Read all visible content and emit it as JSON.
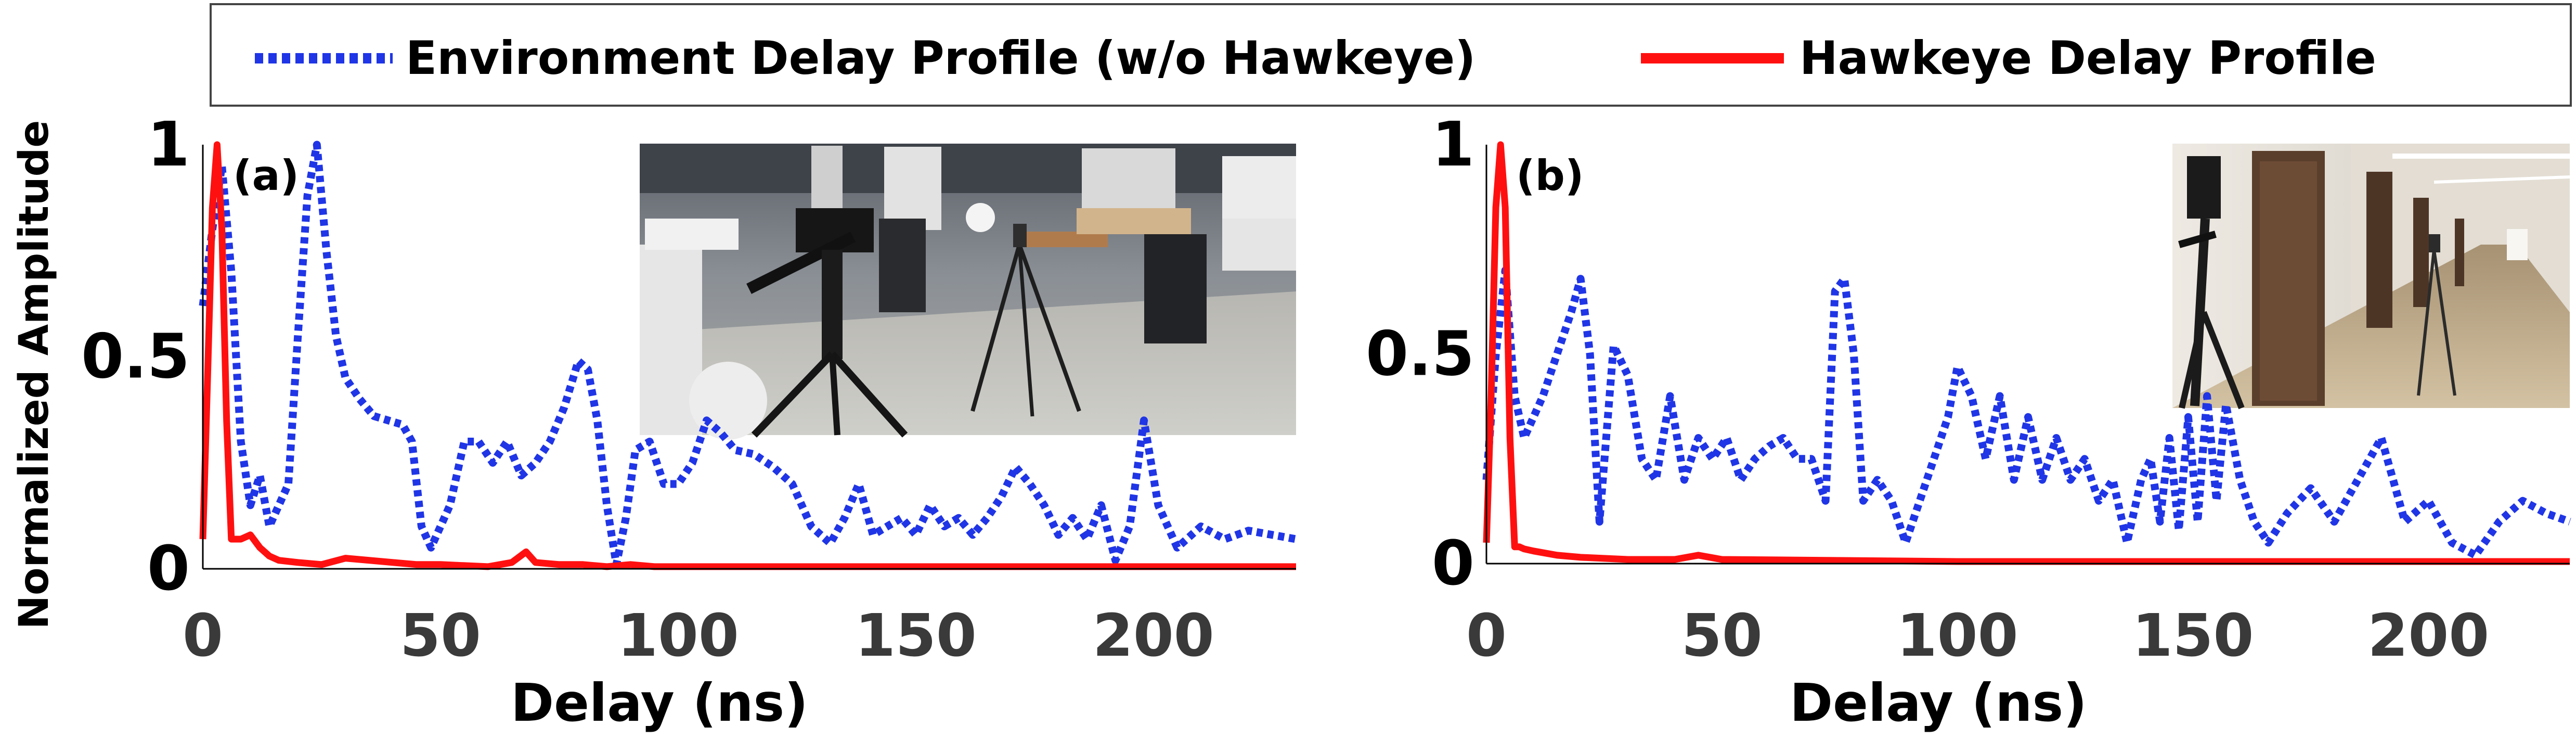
{
  "legend": {
    "environment_label": "Environment Delay Profile (w/o Hawkeye)",
    "hawkeye_label": "Hawkeye Delay Profile"
  },
  "shared_ylabel": "Normalized Amplitude",
  "colors": {
    "environment": "#1f35e6",
    "hawkeye": "#ff1010",
    "axis": "#000000",
    "tick_text": "#3a3a3a"
  },
  "chart_data": [
    {
      "type": "line",
      "panel_label": "(a)",
      "xlabel": "Delay (ns)",
      "ylabel": "Normalized Amplitude",
      "xlim": [
        0,
        230
      ],
      "ylim": [
        0,
        1
      ],
      "xticks": [
        0,
        50,
        100,
        150,
        200
      ],
      "yticks": [
        0,
        0.5,
        1
      ],
      "ytick_labels": [
        "0",
        "0.5",
        "1"
      ],
      "legend_position": "top",
      "grid": false,
      "inset_photo": "indoor-lab-with-tripod-photo",
      "series": [
        {
          "name": "Environment Delay Profile (w/o Hawkeye)",
          "style": "dotted",
          "x": [
            0,
            2,
            4,
            6,
            8,
            10,
            12,
            14,
            16,
            18,
            20,
            22,
            24,
            26,
            28,
            30,
            33,
            36,
            39,
            42,
            44,
            46,
            48,
            50,
            52,
            55,
            58,
            61,
            64,
            67,
            70,
            73,
            76,
            79,
            81,
            83,
            85,
            87,
            89,
            91,
            94,
            97,
            100,
            103,
            106,
            109,
            112,
            116,
            120,
            124,
            128,
            132,
            135,
            138,
            141,
            144,
            147,
            150,
            153,
            156,
            159,
            162,
            165,
            168,
            171,
            174,
            177,
            180,
            183,
            186,
            189,
            192,
            195,
            198,
            201,
            205,
            210,
            215,
            220,
            225,
            230
          ],
          "y": [
            0.62,
            0.8,
            0.95,
            0.7,
            0.3,
            0.15,
            0.22,
            0.1,
            0.15,
            0.2,
            0.55,
            0.88,
            1.0,
            0.75,
            0.55,
            0.45,
            0.4,
            0.36,
            0.35,
            0.34,
            0.3,
            0.1,
            0.05,
            0.1,
            0.15,
            0.3,
            0.3,
            0.25,
            0.3,
            0.22,
            0.25,
            0.3,
            0.38,
            0.49,
            0.47,
            0.35,
            0.15,
            0.01,
            0.12,
            0.28,
            0.3,
            0.2,
            0.2,
            0.25,
            0.35,
            0.32,
            0.28,
            0.27,
            0.24,
            0.2,
            0.1,
            0.06,
            0.12,
            0.2,
            0.08,
            0.1,
            0.12,
            0.08,
            0.15,
            0.1,
            0.12,
            0.08,
            0.12,
            0.17,
            0.24,
            0.2,
            0.15,
            0.08,
            0.12,
            0.07,
            0.15,
            0.02,
            0.1,
            0.35,
            0.15,
            0.05,
            0.1,
            0.07,
            0.09,
            0.08,
            0.07
          ]
        },
        {
          "name": "Hawkeye Delay Profile",
          "style": "solid",
          "x": [
            0,
            1,
            2,
            3,
            4,
            5,
            6,
            7,
            8,
            10,
            12,
            14,
            16,
            20,
            25,
            30,
            35,
            40,
            45,
            50,
            60,
            65,
            68,
            70,
            75,
            80,
            85,
            90,
            95,
            100,
            120,
            150,
            180,
            200,
            230
          ],
          "y": [
            0.07,
            0.45,
            0.85,
            1.0,
            0.8,
            0.35,
            0.07,
            0.07,
            0.07,
            0.08,
            0.05,
            0.03,
            0.02,
            0.015,
            0.01,
            0.025,
            0.02,
            0.015,
            0.01,
            0.01,
            0.005,
            0.015,
            0.04,
            0.015,
            0.01,
            0.01,
            0.005,
            0.01,
            0.005,
            0.005,
            0.005,
            0.005,
            0.005,
            0.005,
            0.005
          ]
        }
      ]
    },
    {
      "type": "line",
      "panel_label": "(b)",
      "xlabel": "Delay (ns)",
      "ylabel": "",
      "xlim": [
        0,
        230
      ],
      "ylim": [
        0,
        1
      ],
      "xticks": [
        0,
        50,
        100,
        150,
        200
      ],
      "yticks": [
        0,
        0.5,
        1
      ],
      "ytick_labels": [
        "0",
        "0.5",
        "1"
      ],
      "legend_position": "top",
      "grid": false,
      "inset_photo": "hallway-with-tripod-photo",
      "series": [
        {
          "name": "Environment Delay Profile (w/o Hawkeye)",
          "style": "dotted",
          "x": [
            0,
            2,
            4,
            6,
            8,
            10,
            12,
            15,
            18,
            20,
            22,
            24,
            27,
            30,
            33,
            36,
            39,
            42,
            45,
            48,
            51,
            54,
            57,
            60,
            63,
            66,
            69,
            72,
            74,
            76,
            78,
            80,
            83,
            86,
            89,
            92,
            95,
            98,
            100,
            103,
            106,
            109,
            112,
            115,
            118,
            121,
            124,
            127,
            130,
            133,
            136,
            139,
            141,
            143,
            145,
            147,
            149,
            151,
            153,
            155,
            157,
            160,
            163,
            166,
            170,
            175,
            180,
            185,
            190,
            195,
            200,
            205,
            210,
            215,
            220,
            225,
            230
          ],
          "y": [
            0.2,
            0.5,
            0.7,
            0.4,
            0.3,
            0.35,
            0.4,
            0.5,
            0.6,
            0.68,
            0.5,
            0.1,
            0.52,
            0.45,
            0.25,
            0.2,
            0.4,
            0.2,
            0.3,
            0.25,
            0.3,
            0.2,
            0.25,
            0.28,
            0.3,
            0.25,
            0.25,
            0.15,
            0.65,
            0.68,
            0.5,
            0.15,
            0.2,
            0.15,
            0.05,
            0.15,
            0.25,
            0.35,
            0.47,
            0.4,
            0.25,
            0.4,
            0.2,
            0.35,
            0.2,
            0.3,
            0.2,
            0.25,
            0.15,
            0.2,
            0.05,
            0.2,
            0.25,
            0.1,
            0.3,
            0.08,
            0.35,
            0.1,
            0.4,
            0.15,
            0.38,
            0.2,
            0.1,
            0.05,
            0.12,
            0.18,
            0.1,
            0.2,
            0.3,
            0.1,
            0.15,
            0.05,
            0.02,
            0.1,
            0.15,
            0.12,
            0.1
          ]
        },
        {
          "name": "Hawkeye Delay Profile",
          "style": "solid",
          "x": [
            0,
            1,
            2,
            3,
            4,
            5,
            6,
            7,
            8,
            10,
            15,
            20,
            30,
            40,
            45,
            50,
            100,
            150,
            200,
            230
          ],
          "y": [
            0.05,
            0.4,
            0.85,
            1.0,
            0.85,
            0.3,
            0.04,
            0.04,
            0.035,
            0.03,
            0.02,
            0.015,
            0.01,
            0.01,
            0.02,
            0.01,
            0.005,
            0.005,
            0.005,
            0.005
          ]
        }
      ]
    }
  ]
}
